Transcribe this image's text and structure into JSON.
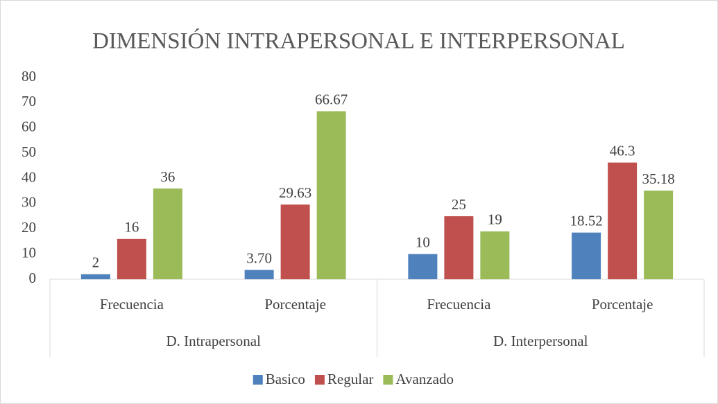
{
  "chart_data": {
    "type": "bar",
    "title": "DIMENSIÓN INTRAPERSONAL E INTERPERSONAL",
    "categories": [
      "Frecuencia",
      "Porcentaje",
      "Frecuencia",
      "Porcentaje"
    ],
    "groups": [
      "D. Intrapersonal",
      "D. Interpersonal"
    ],
    "series": [
      {
        "name": "Basico",
        "color": "#4f81bd",
        "values": [
          2,
          3.7,
          10,
          18.52
        ],
        "value_labels": [
          "2",
          "3.70",
          "10",
          "18.52"
        ]
      },
      {
        "name": "Regular",
        "color": "#c0504d",
        "values": [
          16,
          29.63,
          25,
          46.3
        ]
      },
      {
        "name": "Avanzado",
        "color": "#9bbb59",
        "values": [
          36,
          66.67,
          19,
          35.18
        ]
      }
    ],
    "ylim": [
      0,
      80
    ],
    "yticks": [
      0,
      10,
      20,
      30,
      40,
      50,
      60,
      70,
      80
    ],
    "grid": false,
    "legend": "bottom"
  }
}
